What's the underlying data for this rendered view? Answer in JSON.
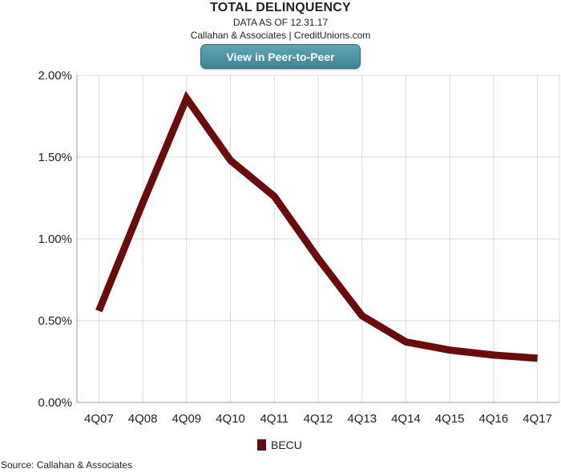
{
  "header": {
    "title": "TOTAL DELINQUENCY",
    "subtitle_date": "DATA AS OF 12.31.17",
    "subtitle_source": "Callahan & Associates | CreditUnions.com",
    "cta_label": "View in Peer-to-Peer"
  },
  "footer": {
    "source": "Source: Callahan & Associates"
  },
  "colors": {
    "series": "#6b0c0c",
    "grid": "#d9d9d9",
    "cta": "#4a90a2"
  },
  "chart_data": {
    "type": "line",
    "title": "TOTAL DELINQUENCY",
    "categories": [
      "4Q07",
      "4Q08",
      "4Q09",
      "4Q10",
      "4Q11",
      "4Q12",
      "4Q13",
      "4Q14",
      "4Q15",
      "4Q16",
      "4Q17"
    ],
    "series": [
      {
        "name": "BECU",
        "values": [
          0.56,
          1.22,
          1.86,
          1.48,
          1.26,
          0.88,
          0.53,
          0.37,
          0.32,
          0.29,
          0.27
        ]
      }
    ],
    "y_ticks": [
      "0.00%",
      "0.50%",
      "1.00%",
      "1.50%",
      "2.00%"
    ],
    "ylim": [
      0,
      2.0
    ],
    "y_unit": "%",
    "grid": true,
    "legend_position": "bottom-center"
  }
}
